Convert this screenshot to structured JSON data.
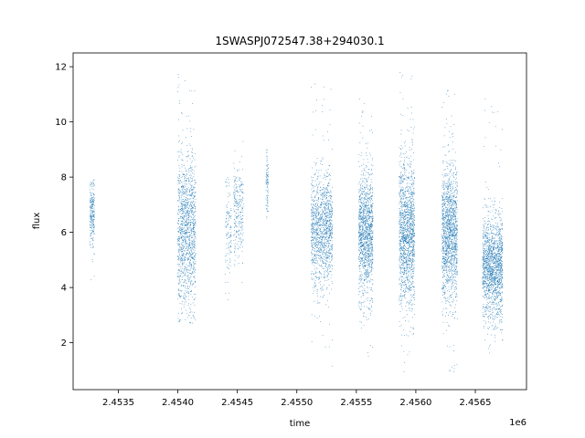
{
  "chart_data": {
    "type": "scatter",
    "title": "1SWASPJ072547.38+294030.1",
    "xlabel": "time",
    "ylabel": "flux",
    "x_offset_label": "1e6",
    "xlim": [
      2453120,
      2456930
    ],
    "ylim": [
      0.3,
      12.5
    ],
    "x_ticks": [
      2453500,
      2454000,
      2454500,
      2455000,
      2455500,
      2456000,
      2456500
    ],
    "x_tick_labels": [
      "2.4535",
      "2.4540",
      "2.4545",
      "2.4550",
      "2.4555",
      "2.4560",
      "2.4565"
    ],
    "y_ticks": [
      2,
      4,
      6,
      8,
      10,
      12
    ],
    "y_tick_labels": [
      "2",
      "4",
      "6",
      "8",
      "10",
      "12"
    ],
    "grid": false,
    "marker_color": "#1f77b4",
    "clusters": [
      {
        "x_start": 2453260,
        "x_end": 2453300,
        "y_center": 6.7,
        "y_spread": 0.6,
        "y_min": 4.2,
        "y_max": 8.0,
        "n": 240
      },
      {
        "x_start": 2454000,
        "x_end": 2454150,
        "y_center": 6.0,
        "y_spread": 1.4,
        "y_min": 2.7,
        "y_max": 12.0,
        "n": 1300
      },
      {
        "x_start": 2454400,
        "x_end": 2454450,
        "y_center": 6.3,
        "y_spread": 1.0,
        "y_min": 3.5,
        "y_max": 8.0,
        "n": 120
      },
      {
        "x_start": 2454470,
        "x_end": 2454550,
        "y_center": 6.7,
        "y_spread": 0.9,
        "y_min": 3.3,
        "y_max": 9.3,
        "n": 260
      },
      {
        "x_start": 2454740,
        "x_end": 2454760,
        "y_center": 7.7,
        "y_spread": 0.6,
        "y_min": 6.5,
        "y_max": 9.0,
        "n": 90
      },
      {
        "x_start": 2455120,
        "x_end": 2455300,
        "y_center": 6.1,
        "y_spread": 1.0,
        "y_min": 1.0,
        "y_max": 11.6,
        "n": 1300
      },
      {
        "x_start": 2455520,
        "x_end": 2455640,
        "y_center": 6.0,
        "y_spread": 1.1,
        "y_min": 1.5,
        "y_max": 11.0,
        "n": 1300
      },
      {
        "x_start": 2455860,
        "x_end": 2455990,
        "y_center": 6.0,
        "y_spread": 1.3,
        "y_min": 0.9,
        "y_max": 11.9,
        "n": 1500
      },
      {
        "x_start": 2456220,
        "x_end": 2456350,
        "y_center": 6.0,
        "y_spread": 1.2,
        "y_min": 0.9,
        "y_max": 11.5,
        "n": 1500
      },
      {
        "x_start": 2456560,
        "x_end": 2456730,
        "y_center": 4.7,
        "y_spread": 0.9,
        "y_min": 1.6,
        "y_max": 10.9,
        "n": 1600
      }
    ]
  }
}
